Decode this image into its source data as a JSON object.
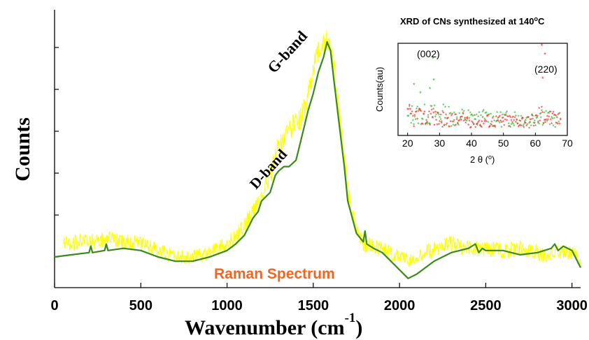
{
  "chart_data": [
    {
      "type": "line",
      "title": "",
      "xlabel": "Wavenumber (cm",
      "xlabel_superscript": "-1",
      "xlabel_suffix": ")",
      "ylabel": "Counts",
      "xlim": [
        0,
        3050
      ],
      "x_ticks": [
        0,
        500,
        1000,
        1500,
        2000,
        2500,
        3000
      ],
      "y_ticks_labeled": false,
      "annotations": [
        "G-band",
        "D-band",
        "Raman Spectrum"
      ],
      "colors": {
        "raw": "#ffff00",
        "smooth": "#3a8a1a",
        "label": "#f26522"
      },
      "series": [
        {
          "role": "raw",
          "color": "#ffff00",
          "x": [
            50,
            150,
            200,
            300,
            400,
            500,
            600,
            700,
            800,
            900,
            1000,
            1050,
            1100,
            1150,
            1200,
            1250,
            1280,
            1300,
            1350,
            1400,
            1450,
            1480,
            1500,
            1520,
            1550,
            1580,
            1600,
            1620,
            1650,
            1700,
            1750,
            1800,
            1900,
            2000,
            2050,
            2100,
            2200,
            2300,
            2400,
            2500,
            2600,
            2700,
            2800,
            2850,
            2900,
            3000,
            3050
          ],
          "y": [
            0.06,
            0.07,
            0.07,
            0.08,
            0.07,
            0.06,
            0.03,
            0.0,
            0.0,
            0.02,
            0.06,
            0.09,
            0.14,
            0.2,
            0.28,
            0.38,
            0.45,
            0.52,
            0.58,
            0.62,
            0.68,
            0.78,
            0.88,
            0.95,
            0.98,
            1.0,
            0.98,
            0.88,
            0.68,
            0.3,
            0.12,
            0.06,
            0.04,
            0.0,
            -0.02,
            0.0,
            0.04,
            0.06,
            0.04,
            0.04,
            0.03,
            0.04,
            0.02,
            0.0,
            0.03,
            0.02,
            -0.01
          ]
        },
        {
          "role": "smoothed",
          "color": "#3a8a1a",
          "x": [
            0,
            100,
            200,
            210,
            220,
            290,
            300,
            310,
            400,
            500,
            600,
            700,
            800,
            900,
            1000,
            1050,
            1100,
            1150,
            1180,
            1200,
            1250,
            1280,
            1300,
            1330,
            1360,
            1400,
            1440,
            1470,
            1500,
            1530,
            1560,
            1580,
            1600,
            1620,
            1650,
            1680,
            1700,
            1750,
            1790,
            1800,
            1810,
            1850,
            1900,
            2000,
            2050,
            2100,
            2200,
            2300,
            2400,
            2440,
            2460,
            2480,
            2500,
            2600,
            2700,
            2800,
            2880,
            2900,
            2920,
            2950,
            3000,
            3050
          ],
          "y": [
            0.0,
            0.01,
            0.02,
            0.05,
            0.02,
            0.03,
            0.06,
            0.03,
            0.04,
            0.03,
            0.0,
            -0.02,
            -0.02,
            0.0,
            0.03,
            0.06,
            0.1,
            0.18,
            0.21,
            0.26,
            0.3,
            0.38,
            0.4,
            0.42,
            0.42,
            0.45,
            0.58,
            0.68,
            0.76,
            0.86,
            0.93,
            1.0,
            0.96,
            0.82,
            0.62,
            0.42,
            0.26,
            0.11,
            0.07,
            0.12,
            0.06,
            0.04,
            0.02,
            -0.06,
            -0.1,
            -0.08,
            -0.02,
            0.02,
            0.04,
            0.06,
            0.02,
            0.04,
            0.03,
            0.03,
            0.01,
            0.02,
            0.04,
            0.06,
            0.03,
            0.05,
            0.03,
            -0.05
          ]
        }
      ]
    },
    {
      "type": "scatter",
      "title": "XRD of CNs synthesized at 140",
      "title_superscript": "o",
      "title_suffix": "C",
      "xlabel": "2 θ (",
      "xlabel_superscript": "o",
      "xlabel_suffix": ")",
      "ylabel": "Counts(au)",
      "xlim": [
        17,
        70
      ],
      "x_ticks": [
        20,
        30,
        40,
        50,
        60,
        70
      ],
      "annotations": [
        "(002)",
        "(220)"
      ],
      "series": [
        {
          "color": "#22bb22",
          "x": [
            20,
            21,
            22,
            23,
            24,
            25,
            26,
            27,
            28,
            28.2,
            29,
            30,
            32,
            34,
            36,
            38,
            40,
            42,
            44,
            46,
            48,
            50,
            52,
            54,
            56,
            58,
            60,
            62,
            64,
            66,
            68
          ],
          "y": [
            0.2,
            0.35,
            0.55,
            0.3,
            0.45,
            0.25,
            0.4,
            0.5,
            0.85,
            0.6,
            0.35,
            0.3,
            0.28,
            0.25,
            0.22,
            0.25,
            0.22,
            0.2,
            0.23,
            0.22,
            0.2,
            0.22,
            0.2,
            0.25,
            0.22,
            0.2,
            0.25,
            0.3,
            0.22,
            0.18,
            0.2
          ]
        },
        {
          "color": "#ff1a1a",
          "x": [
            20,
            21,
            22,
            23,
            24,
            25,
            26,
            27,
            28,
            29,
            30,
            32,
            34,
            36,
            38,
            40,
            42,
            44,
            46,
            48,
            50,
            52,
            54,
            56,
            58,
            60,
            61,
            62,
            62.3,
            63,
            64,
            66,
            68
          ],
          "y": [
            0.25,
            0.3,
            0.2,
            0.28,
            0.22,
            0.25,
            0.2,
            0.3,
            0.25,
            0.2,
            0.22,
            0.18,
            0.2,
            0.17,
            0.2,
            0.18,
            0.16,
            0.19,
            0.17,
            0.18,
            0.16,
            0.19,
            0.17,
            0.18,
            0.16,
            0.2,
            0.25,
            1.0,
            0.62,
            0.9,
            0.25,
            0.2,
            0.18
          ]
        }
      ]
    }
  ]
}
